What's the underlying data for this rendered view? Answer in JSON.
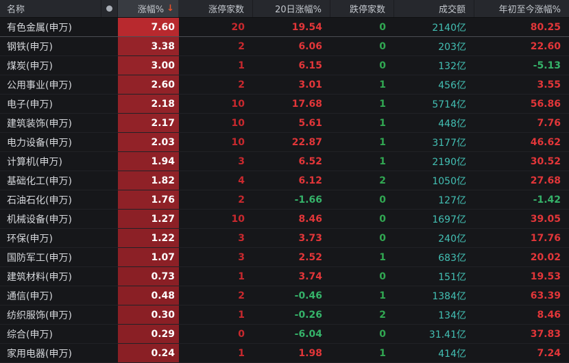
{
  "header": {
    "columns": [
      "名称",
      "涨幅%",
      "涨停家数",
      "20日涨幅%",
      "跌停家数",
      "成交额",
      "年初至今涨幅%"
    ],
    "sort_icon": "↓",
    "indicator_dot_icon": "●"
  },
  "colors": {
    "up_red": "#e23639",
    "count_red": "#c9292e",
    "down_green": "#35b269",
    "turnover_cyan": "#43c0b4",
    "bar_top": "#b8292e",
    "bar_base": "#8e2126",
    "header_bg": "#26282d",
    "sorted_header_bg": "#383b41",
    "page_bg": "#16171a"
  },
  "rows": [
    {
      "name": "有色金属(申万)",
      "chg": "7.60",
      "bar": "#b8292e",
      "limit_up": "20",
      "chg20": "19.54",
      "limit_down": "0",
      "turnover": "2140亿",
      "ytd": "80.25"
    },
    {
      "name": "钢铁(申万)",
      "chg": "3.38",
      "bar": "#962329",
      "limit_up": "2",
      "chg20": "6.06",
      "limit_down": "0",
      "turnover": "203亿",
      "ytd": "22.60"
    },
    {
      "name": "煤炭(申万)",
      "chg": "3.00",
      "bar": "#962329",
      "limit_up": "1",
      "chg20": "6.15",
      "limit_down": "0",
      "turnover": "132亿",
      "ytd": "-5.13"
    },
    {
      "name": "公用事业(申万)",
      "chg": "2.60",
      "bar": "#922228",
      "limit_up": "2",
      "chg20": "3.01",
      "limit_down": "1",
      "turnover": "456亿",
      "ytd": "3.55"
    },
    {
      "name": "电子(申万)",
      "chg": "2.18",
      "bar": "#922228",
      "limit_up": "10",
      "chg20": "17.68",
      "limit_down": "1",
      "turnover": "5714亿",
      "ytd": "56.86"
    },
    {
      "name": "建筑装饰(申万)",
      "chg": "2.17",
      "bar": "#922228",
      "limit_up": "10",
      "chg20": "5.61",
      "limit_down": "1",
      "turnover": "448亿",
      "ytd": "7.76"
    },
    {
      "name": "电力设备(申万)",
      "chg": "2.03",
      "bar": "#922228",
      "limit_up": "10",
      "chg20": "22.87",
      "limit_down": "1",
      "turnover": "3177亿",
      "ytd": "46.62"
    },
    {
      "name": "计算机(申万)",
      "chg": "1.94",
      "bar": "#8f2127",
      "limit_up": "3",
      "chg20": "6.52",
      "limit_down": "1",
      "turnover": "2190亿",
      "ytd": "30.52"
    },
    {
      "name": "基础化工(申万)",
      "chg": "1.82",
      "bar": "#8f2127",
      "limit_up": "4",
      "chg20": "6.12",
      "limit_down": "2",
      "turnover": "1050亿",
      "ytd": "27.68"
    },
    {
      "name": "石油石化(申万)",
      "chg": "1.76",
      "bar": "#8f2127",
      "limit_up": "2",
      "chg20": "-1.66",
      "limit_down": "0",
      "turnover": "127亿",
      "ytd": "-1.42"
    },
    {
      "name": "机械设备(申万)",
      "chg": "1.27",
      "bar": "#8c2026",
      "limit_up": "10",
      "chg20": "8.46",
      "limit_down": "0",
      "turnover": "1697亿",
      "ytd": "39.05"
    },
    {
      "name": "环保(申万)",
      "chg": "1.22",
      "bar": "#8c2026",
      "limit_up": "3",
      "chg20": "3.73",
      "limit_down": "0",
      "turnover": "240亿",
      "ytd": "17.76"
    },
    {
      "name": "国防军工(申万)",
      "chg": "1.07",
      "bar": "#8c2026",
      "limit_up": "3",
      "chg20": "2.52",
      "limit_down": "1",
      "turnover": "683亿",
      "ytd": "20.02"
    },
    {
      "name": "建筑材料(申万)",
      "chg": "0.73",
      "bar": "#8a1f25",
      "limit_up": "1",
      "chg20": "3.74",
      "limit_down": "0",
      "turnover": "151亿",
      "ytd": "19.53"
    },
    {
      "name": "通信(申万)",
      "chg": "0.48",
      "bar": "#8a1f25",
      "limit_up": "2",
      "chg20": "-0.46",
      "limit_down": "1",
      "turnover": "1384亿",
      "ytd": "63.39"
    },
    {
      "name": "纺织服饰(申万)",
      "chg": "0.30",
      "bar": "#8a1f25",
      "limit_up": "1",
      "chg20": "-0.26",
      "limit_down": "2",
      "turnover": "134亿",
      "ytd": "8.46"
    },
    {
      "name": "综合(申万)",
      "chg": "0.29",
      "bar": "#8a1f25",
      "limit_up": "0",
      "chg20": "-6.04",
      "limit_down": "0",
      "turnover": "31.41亿",
      "ytd": "37.83"
    },
    {
      "name": "家用电器(申万)",
      "chg": "0.24",
      "bar": "#8a1f25",
      "limit_up": "1",
      "chg20": "1.98",
      "limit_down": "1",
      "turnover": "414亿",
      "ytd": "7.24"
    }
  ]
}
